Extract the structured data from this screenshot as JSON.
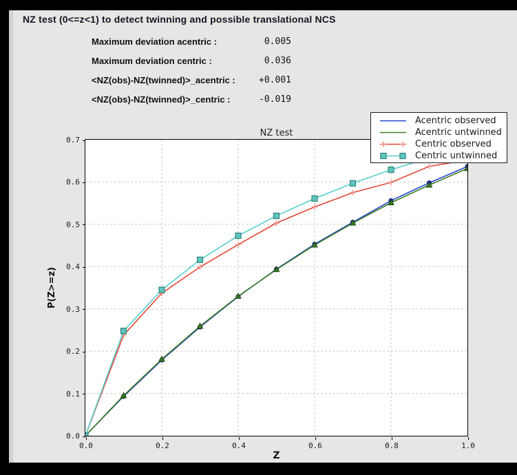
{
  "header": {
    "title": "NZ test (0<=z<1) to detect twinning and possible translational NCS"
  },
  "stats": [
    {
      "label": "Maximum deviation acentric :",
      "value": "0.005"
    },
    {
      "label": "Maximum deviation centric :",
      "value": "0.036"
    },
    {
      "label": "<NZ(obs)-NZ(twinned)>_acentric :",
      "value": "+0.001"
    },
    {
      "label": "<NZ(obs)-NZ(twinned)>_centric :",
      "value": "-0.019"
    }
  ],
  "chart_data": {
    "type": "line",
    "title": "NZ test",
    "xlabel": "Z",
    "ylabel": "P(Z>=z)",
    "xlim": [
      0.0,
      1.0
    ],
    "ylim": [
      0.0,
      0.7
    ],
    "grid": true,
    "grid_color": "#c9c9c9",
    "plot_bg": "#ffffff",
    "legend_position": "top-right",
    "xticks": [
      {
        "v": 0.0,
        "label": "0.0"
      },
      {
        "v": 0.2,
        "label": "0.2"
      },
      {
        "v": 0.4,
        "label": "0.4"
      },
      {
        "v": 0.6,
        "label": "0.6"
      },
      {
        "v": 0.8,
        "label": "0.8"
      },
      {
        "v": 1.0,
        "label": "1.0"
      }
    ],
    "yticks": [
      {
        "v": 0.0,
        "label": "0.0"
      },
      {
        "v": 0.1,
        "label": "0.1"
      },
      {
        "v": 0.2,
        "label": "0.2"
      },
      {
        "v": 0.3,
        "label": "0.3"
      },
      {
        "v": 0.4,
        "label": "0.4"
      },
      {
        "v": 0.5,
        "label": "0.5"
      },
      {
        "v": 0.6,
        "label": "0.6"
      },
      {
        "v": 0.7,
        "label": "0.7"
      }
    ],
    "grid_x": [
      0.2,
      0.4,
      0.6,
      0.8
    ],
    "grid_y": [
      0.1,
      0.2,
      0.3,
      0.4,
      0.5,
      0.6
    ],
    "x": [
      0.0,
      0.1,
      0.2,
      0.3,
      0.4,
      0.5,
      0.6,
      0.7,
      0.8,
      0.9,
      1.0
    ],
    "series": [
      {
        "name": "Acentric observed",
        "color": "#2244cc",
        "marker": "circle",
        "marker_color": "#1b2fae",
        "marker_edge": "#101d6e",
        "legend_marker": false,
        "values": [
          0.0,
          0.093,
          0.179,
          0.257,
          0.329,
          0.394,
          0.453,
          0.505,
          0.556,
          0.598,
          0.637
        ]
      },
      {
        "name": "Acentric untwinned",
        "color": "#3d7c22",
        "marker": "triangle",
        "marker_color": "#3a7a22",
        "marker_edge": "#1c3a10",
        "legend_marker": false,
        "values": [
          0.0,
          0.095,
          0.181,
          0.259,
          0.33,
          0.393,
          0.451,
          0.503,
          0.551,
          0.593,
          0.632
        ]
      },
      {
        "name": "Centric observed",
        "color": "#e64534",
        "marker": "plus",
        "marker_color": "#f0918a",
        "marker_edge": "#f0918a",
        "legend_marker": true,
        "values": [
          0.0,
          0.238,
          0.337,
          0.399,
          0.452,
          0.503,
          0.541,
          0.575,
          0.599,
          0.637,
          0.652
        ]
      },
      {
        "name": "Centric untwinned",
        "color": "#55cfcf",
        "marker": "square",
        "marker_color": "#5fc6be",
        "marker_edge": "#2f837d",
        "legend_marker": true,
        "values": [
          0.0,
          0.248,
          0.345,
          0.416,
          0.473,
          0.52,
          0.561,
          0.597,
          0.629,
          0.657,
          0.683
        ]
      }
    ]
  }
}
